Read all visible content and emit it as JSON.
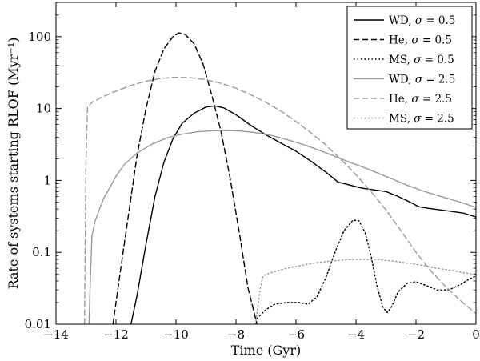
{
  "chart_data": {
    "type": "line",
    "title": "",
    "xlabel": "Time (Gyr)",
    "ylabel": "Rate of systems starting RLOF (Myr⁻¹)",
    "xlim": [
      -14,
      0
    ],
    "ylim": [
      0.01,
      300
    ],
    "yscale": "log",
    "grid": false,
    "legend_position": "top-right",
    "x_ticks": [
      {
        "value": -14,
        "label": "−14"
      },
      {
        "value": -12,
        "label": "−12"
      },
      {
        "value": -10,
        "label": "−10"
      },
      {
        "value": -8,
        "label": "−8"
      },
      {
        "value": -6,
        "label": "−6"
      },
      {
        "value": -4,
        "label": "−4"
      },
      {
        "value": -2,
        "label": "−2"
      },
      {
        "value": 0,
        "label": "0"
      }
    ],
    "y_ticks": [
      {
        "value": 0.01,
        "label": "0.01"
      },
      {
        "value": 0.1,
        "label": "0.1"
      },
      {
        "value": 1,
        "label": "1"
      },
      {
        "value": 10,
        "label": "10"
      },
      {
        "value": 100,
        "label": "100"
      }
    ],
    "series": [
      {
        "name": "WD, σ = 0.5",
        "prefix": "WD, ",
        "sigma": "0.5",
        "color": "#000000",
        "dash": "solid",
        "points": [
          [
            -11.5,
            0.01
          ],
          [
            -11.3,
            0.025
          ],
          [
            -11.0,
            0.13
          ],
          [
            -10.7,
            0.6
          ],
          [
            -10.4,
            1.8
          ],
          [
            -10.1,
            3.8
          ],
          [
            -9.8,
            6.2
          ],
          [
            -9.4,
            8.6
          ],
          [
            -9.0,
            10.5
          ],
          [
            -8.7,
            10.9
          ],
          [
            -8.4,
            10.2
          ],
          [
            -8.0,
            8.2
          ],
          [
            -7.5,
            5.8
          ],
          [
            -7.0,
            4.3
          ],
          [
            -6.5,
            3.3
          ],
          [
            -6.0,
            2.55
          ],
          [
            -5.5,
            1.85
          ],
          [
            -5.0,
            1.3
          ],
          [
            -4.6,
            0.95
          ],
          [
            -4.2,
            0.86
          ],
          [
            -3.8,
            0.78
          ],
          [
            -3.4,
            0.74
          ],
          [
            -3.0,
            0.7
          ],
          [
            -2.6,
            0.6
          ],
          [
            -2.2,
            0.5
          ],
          [
            -1.9,
            0.43
          ],
          [
            -1.6,
            0.41
          ],
          [
            -1.2,
            0.39
          ],
          [
            -0.8,
            0.37
          ],
          [
            -0.4,
            0.35
          ],
          [
            0.0,
            0.31
          ]
        ]
      },
      {
        "name": "He, σ = 0.5",
        "prefix": "He, ",
        "sigma": "0.5",
        "color": "#000000",
        "dash": "long",
        "points": [
          [
            -12.1,
            0.01
          ],
          [
            -11.9,
            0.04
          ],
          [
            -11.6,
            0.3
          ],
          [
            -11.3,
            2.2
          ],
          [
            -11.0,
            10
          ],
          [
            -10.7,
            33
          ],
          [
            -10.4,
            68
          ],
          [
            -10.1,
            100
          ],
          [
            -9.9,
            113
          ],
          [
            -9.7,
            108
          ],
          [
            -9.4,
            80
          ],
          [
            -9.1,
            42
          ],
          [
            -8.8,
            15
          ],
          [
            -8.5,
            4.8
          ],
          [
            -8.2,
            1.1
          ],
          [
            -7.9,
            0.2
          ],
          [
            -7.6,
            0.032
          ],
          [
            -7.3,
            0.01
          ]
        ]
      },
      {
        "name": "MS, σ = 0.5",
        "prefix": "MS, ",
        "sigma": "0.5",
        "color": "#000000",
        "dash": "dot",
        "points": [
          [
            -7.3,
            0.012
          ],
          [
            -7.0,
            0.016
          ],
          [
            -6.7,
            0.019
          ],
          [
            -6.3,
            0.02
          ],
          [
            -5.9,
            0.02
          ],
          [
            -5.6,
            0.019
          ],
          [
            -5.3,
            0.024
          ],
          [
            -5.0,
            0.045
          ],
          [
            -4.7,
            0.1
          ],
          [
            -4.4,
            0.2
          ],
          [
            -4.1,
            0.28
          ],
          [
            -3.9,
            0.275
          ],
          [
            -3.7,
            0.19
          ],
          [
            -3.5,
            0.09
          ],
          [
            -3.3,
            0.034
          ],
          [
            -3.1,
            0.017
          ],
          [
            -2.95,
            0.0145
          ],
          [
            -2.8,
            0.018
          ],
          [
            -2.6,
            0.028
          ],
          [
            -2.3,
            0.037
          ],
          [
            -2.0,
            0.039
          ],
          [
            -1.7,
            0.035
          ],
          [
            -1.3,
            0.03
          ],
          [
            -0.9,
            0.03
          ],
          [
            -0.5,
            0.036
          ],
          [
            -0.2,
            0.043
          ],
          [
            0.0,
            0.047
          ]
        ]
      },
      {
        "name": "WD, σ = 2.5",
        "prefix": "WD, ",
        "sigma": "2.5",
        "color": "#9a9a9a",
        "dash": "solid",
        "points": [
          [
            -12.9,
            0.01
          ],
          [
            -12.85,
            0.05
          ],
          [
            -12.8,
            0.17
          ],
          [
            -12.7,
            0.27
          ],
          [
            -12.55,
            0.4
          ],
          [
            -12.4,
            0.58
          ],
          [
            -12.2,
            0.8
          ],
          [
            -12.0,
            1.15
          ],
          [
            -11.7,
            1.7
          ],
          [
            -11.3,
            2.4
          ],
          [
            -10.8,
            3.2
          ],
          [
            -10.3,
            3.9
          ],
          [
            -9.8,
            4.4
          ],
          [
            -9.3,
            4.75
          ],
          [
            -8.8,
            4.9
          ],
          [
            -8.3,
            4.95
          ],
          [
            -7.8,
            4.85
          ],
          [
            -7.3,
            4.6
          ],
          [
            -6.8,
            4.2
          ],
          [
            -6.3,
            3.7
          ],
          [
            -5.8,
            3.2
          ],
          [
            -5.3,
            2.7
          ],
          [
            -4.8,
            2.25
          ],
          [
            -4.3,
            1.85
          ],
          [
            -3.8,
            1.55
          ],
          [
            -3.3,
            1.28
          ],
          [
            -2.8,
            1.05
          ],
          [
            -2.3,
            0.86
          ],
          [
            -1.8,
            0.72
          ],
          [
            -1.3,
            0.62
          ],
          [
            -0.8,
            0.54
          ],
          [
            -0.4,
            0.48
          ],
          [
            0.0,
            0.42
          ]
        ]
      },
      {
        "name": "He, σ = 2.5",
        "prefix": "He, ",
        "sigma": "2.5",
        "color": "#9a9a9a",
        "dash": "long",
        "points": [
          [
            -13.05,
            0.01
          ],
          [
            -13.0,
            2.0
          ],
          [
            -12.95,
            10.5
          ],
          [
            -12.8,
            12.2
          ],
          [
            -12.5,
            14.2
          ],
          [
            -12.0,
            17.5
          ],
          [
            -11.5,
            21
          ],
          [
            -11.0,
            24
          ],
          [
            -10.5,
            26.3
          ],
          [
            -10.0,
            27.2
          ],
          [
            -9.5,
            26.8
          ],
          [
            -9.0,
            25.2
          ],
          [
            -8.5,
            22.5
          ],
          [
            -8.0,
            19.2
          ],
          [
            -7.5,
            15.5
          ],
          [
            -7.0,
            12.2
          ],
          [
            -6.5,
            9.2
          ],
          [
            -6.0,
            6.6
          ],
          [
            -5.5,
            4.6
          ],
          [
            -5.0,
            3.1
          ],
          [
            -4.5,
            1.95
          ],
          [
            -4.0,
            1.2
          ],
          [
            -3.5,
            0.7
          ],
          [
            -3.0,
            0.39
          ],
          [
            -2.5,
            0.2
          ],
          [
            -2.0,
            0.1
          ],
          [
            -1.5,
            0.055
          ],
          [
            -1.0,
            0.033
          ],
          [
            -0.5,
            0.021
          ],
          [
            0.0,
            0.014
          ]
        ]
      },
      {
        "name": "MS, σ = 2.5",
        "prefix": "MS, ",
        "sigma": "2.5",
        "color": "#9a9a9a",
        "dash": "dot",
        "points": [
          [
            -7.35,
            0.01
          ],
          [
            -7.2,
            0.03
          ],
          [
            -7.1,
            0.047
          ],
          [
            -6.8,
            0.053
          ],
          [
            -6.3,
            0.06
          ],
          [
            -5.8,
            0.066
          ],
          [
            -5.3,
            0.072
          ],
          [
            -4.8,
            0.076
          ],
          [
            -4.3,
            0.079
          ],
          [
            -3.8,
            0.08
          ],
          [
            -3.3,
            0.079
          ],
          [
            -2.8,
            0.076
          ],
          [
            -2.3,
            0.071
          ],
          [
            -1.8,
            0.066
          ],
          [
            -1.3,
            0.06
          ],
          [
            -0.8,
            0.056
          ],
          [
            -0.4,
            0.052
          ],
          [
            0.0,
            0.049
          ]
        ]
      }
    ]
  }
}
